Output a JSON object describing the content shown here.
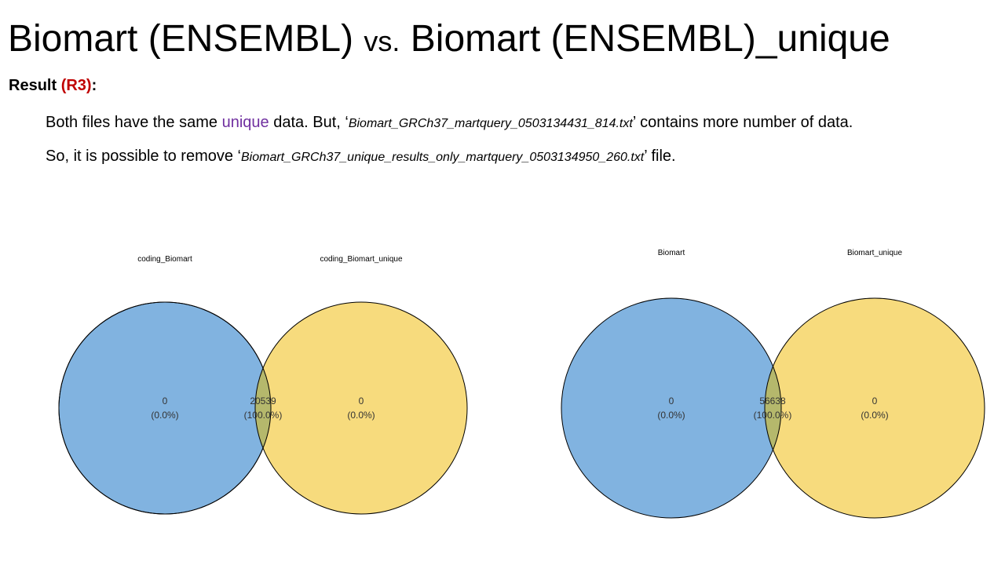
{
  "title": {
    "part1": "Biomart (ENSEMBL) ",
    "vs": "vs.",
    "part2": " Biomart (ENSEMBL)_unique"
  },
  "result": {
    "label": "Result ",
    "code": "(R3)",
    "colon": ":"
  },
  "sentence1": {
    "a": "Both files have the same ",
    "highlight": "unique",
    "b": " data. But, ‘",
    "file": "Biomart_GRCh37_martquery_0503134431_814.txt",
    "c": "’ contains more number of data."
  },
  "sentence2": {
    "a": "So, it is possible to remove ‘",
    "file": "Biomart_GRCh37_unique_results_only_martquery_0503134950_260.txt",
    "c": "’ file."
  },
  "colors": {
    "left": "#6fa8dc",
    "right": "#f6d66b",
    "overlap": "#b5b86c",
    "highlight": "#7030a0",
    "code": "#c00000"
  },
  "chart_data": [
    {
      "type": "venn",
      "sets": [
        "coding_Biomart",
        "coding_Biomart_unique"
      ],
      "regions": [
        {
          "count": "0",
          "pct": "(0.0%)"
        },
        {
          "count": "20539",
          "pct": "(100.0%)"
        },
        {
          "count": "0",
          "pct": "(0.0%)"
        }
      ]
    },
    {
      "type": "venn",
      "sets": [
        "Biomart",
        "Biomart_unique"
      ],
      "regions": [
        {
          "count": "0",
          "pct": "(0.0%)"
        },
        {
          "count": "56638",
          "pct": "(100.0%)"
        },
        {
          "count": "0",
          "pct": "(0.0%)"
        }
      ]
    }
  ]
}
